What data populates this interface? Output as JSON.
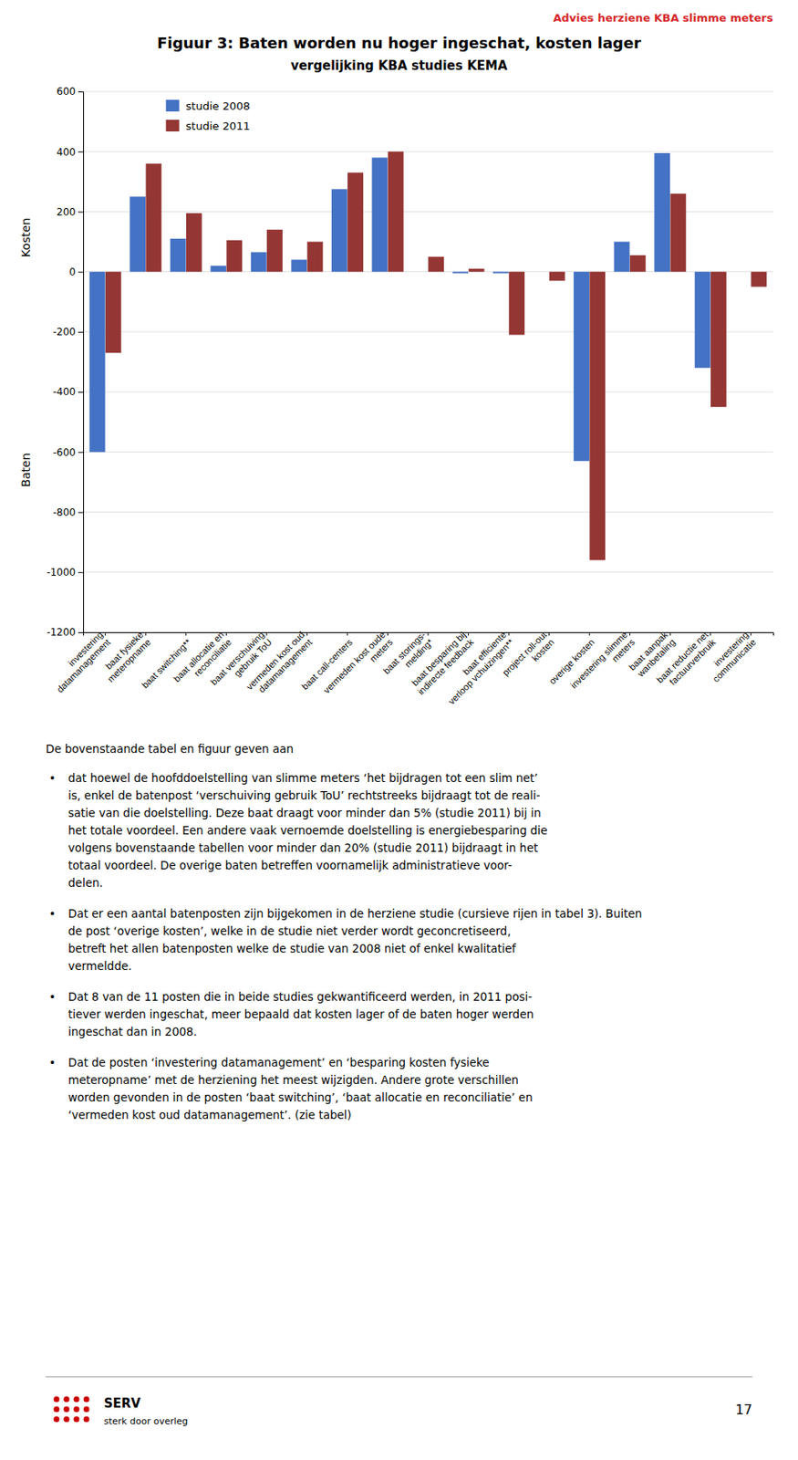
{
  "chart_data": {
    "type": "bar",
    "header": "Advies herziene KBA slimme meters",
    "title": "Figuur 3: Baten worden nu hoger ingeschat, kosten lager",
    "subtitle": "vergelijking KBA studies KEMA",
    "categories": [
      "investering\ndatamanagement",
      "baat fysieke\nmeteropname",
      "baat switching**",
      "baat allocatie en\nreconciliatie",
      "baat verschuiving\ngebruik ToU",
      "vermeden kost oud\ndatamanagement",
      "baat call-centers",
      "vermeden kost oude\nmeters",
      "baat storings-\nmelding*",
      "baat besparing bij\nindirecte feedback",
      "baat efficiente\nverloop vchuizingen**",
      "project roll-out\nkosten",
      "overige kosten",
      "investering slimme\nmeters",
      "baat aanpak\nwanbetaling",
      "baat reductie net\nfactuurverbruik",
      "investering\ncommunicatie"
    ],
    "series": [
      {
        "name": "studie 2008",
        "color": "#4472C4",
        "values": [
          -600,
          250,
          110,
          20,
          65,
          40,
          275,
          380,
          0,
          -5,
          -5,
          0,
          -630,
          100,
          395,
          -320,
          0
        ]
      },
      {
        "name": "studie 2011",
        "color": "#943634",
        "values": [
          -270,
          360,
          195,
          105,
          140,
          100,
          330,
          400,
          50,
          10,
          -210,
          -30,
          -960,
          55,
          260,
          -450,
          -50
        ]
      }
    ],
    "ylim": [
      -1200,
      600
    ],
    "yticks": [
      -1200,
      -1000,
      -800,
      -600,
      -400,
      -200,
      0,
      200,
      400,
      600
    ],
    "grid": true,
    "legend": "top-left",
    "ylabel_top": "Kosten",
    "ylabel_bottom": "Baten",
    "annotations": {
      "intro": "De bovenstaande tabel en figuur geven aan",
      "bullet": "•",
      "bullets": [
        [
          "dat hoewel de hoofddoelstelling van slimme meters ‘het bijdragen tot een slim net’",
          "is, enkel de batenpost ‘verschuiving gebruik ToU’ rechtstreeks bijdraagt tot de reali-",
          "satie van die doelstelling. Deze baat draagt voor minder dan 5% (studie 2011) bij in",
          "het totale voordeel. Een andere vaak vernoemde doelstelling is energiebesparing die",
          "volgens bovenstaande tabellen voor minder dan 20% (studie 2011) bijdraagt in het",
          "totaal voordeel. De overige baten betreffen voornamelijk administratieve voor-",
          "delen."
        ],
        [
          "Dat er een aantal batenposten zijn bijgekomen in de herziene studie (cursieve rijen in tabel 3). Buiten",
          "de post ‘overige kosten’, welke in de studie niet verder wordt geconcretiseerd,",
          "betreft het allen batenposten welke de studie van 2008 niet of enkel kwalitatief",
          "vermeldde."
        ],
        [
          "Dat 8 van de 11 posten die in beide studies gekwantificeerd werden, in 2011 posi-",
          "tiever werden ingeschat, meer bepaald dat kosten lager of de baten hoger werden",
          "ingeschat dan in 2008."
        ],
        [
          "Dat de posten ‘investering datamanagement’ en ‘besparing kosten fysieke",
          "meteropname’ met de herziening het meest wijzigden. Andere grote verschillen",
          "worden gevonden in de posten ‘baat switching’, ‘baat allocatie en reconciliatie’ en",
          "‘vermeden kost oud datamanagement’. (zie tabel)"
        ]
      ]
    },
    "footer": [
      "SERV",
      "sterk door overleg"
    ],
    "page_number": "17"
  }
}
